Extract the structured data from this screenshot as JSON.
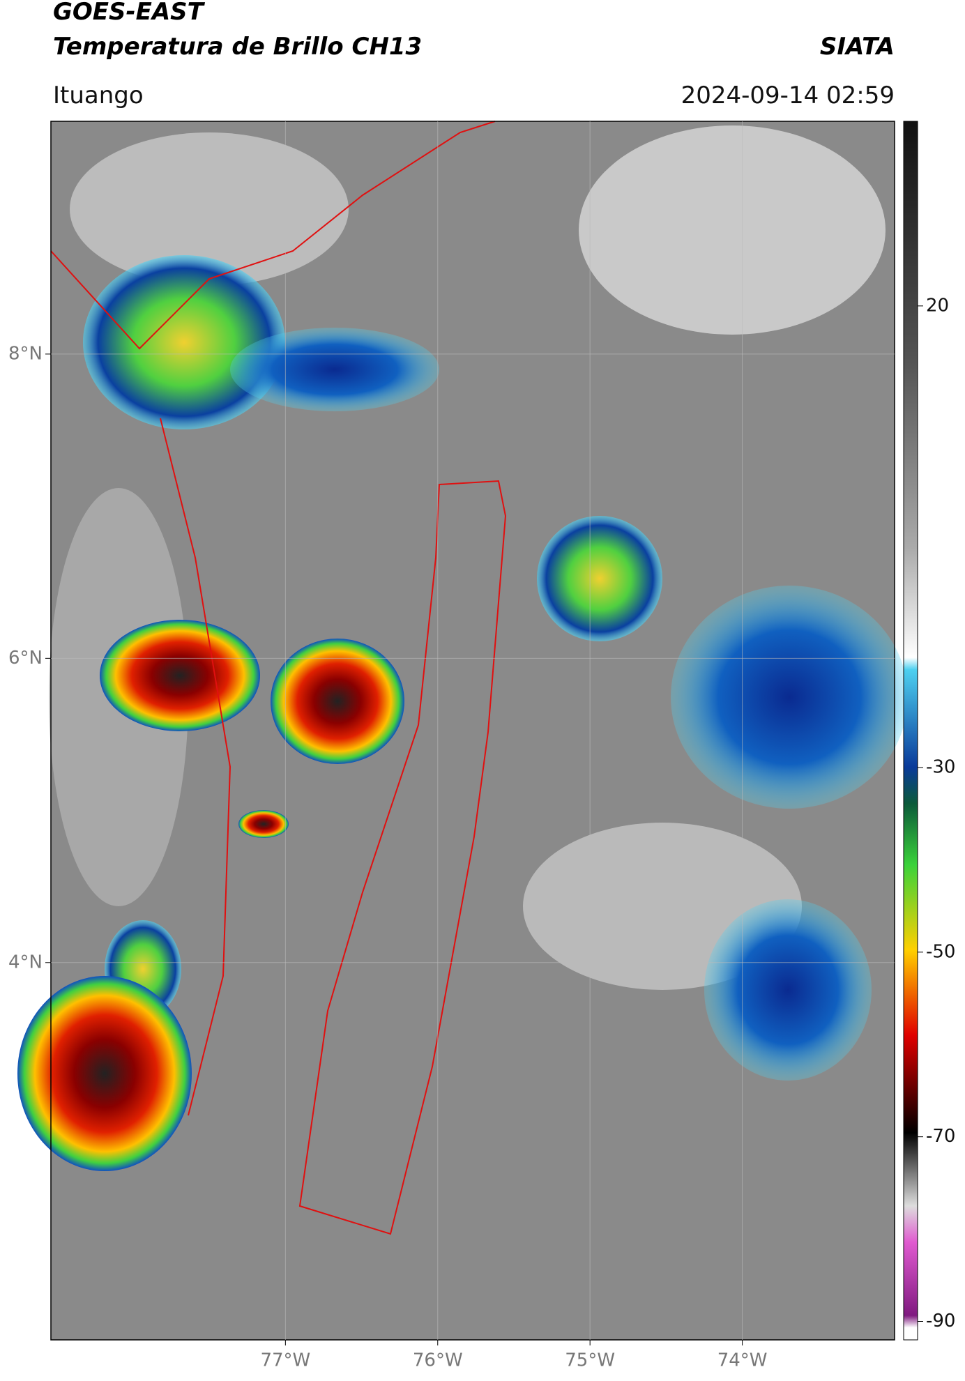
{
  "header": {
    "title": "GOES-EAST",
    "subtitle": "Temperatura de Brillo CH13",
    "source": "SIATA",
    "location": "Ituango",
    "datetime": "2024-09-14 02:59"
  },
  "map": {
    "type": "map",
    "xlim": [
      -78.54,
      -73.0
    ],
    "ylim": [
      1.52,
      9.53
    ],
    "xticks": [
      {
        "value": -77,
        "label": "77°W"
      },
      {
        "value": -76,
        "label": "76°W"
      },
      {
        "value": -75,
        "label": "75°W"
      },
      {
        "value": -74,
        "label": "74°W"
      }
    ],
    "yticks": [
      {
        "value": 8,
        "label": "8°N"
      },
      {
        "value": 6,
        "label": "6°N"
      },
      {
        "value": 4,
        "label": "4°N"
      }
    ],
    "grid": true,
    "colorbar": {
      "lim": [
        -92,
        40
      ],
      "ticks": [
        20,
        -30,
        -50,
        -70,
        -90
      ]
    }
  }
}
